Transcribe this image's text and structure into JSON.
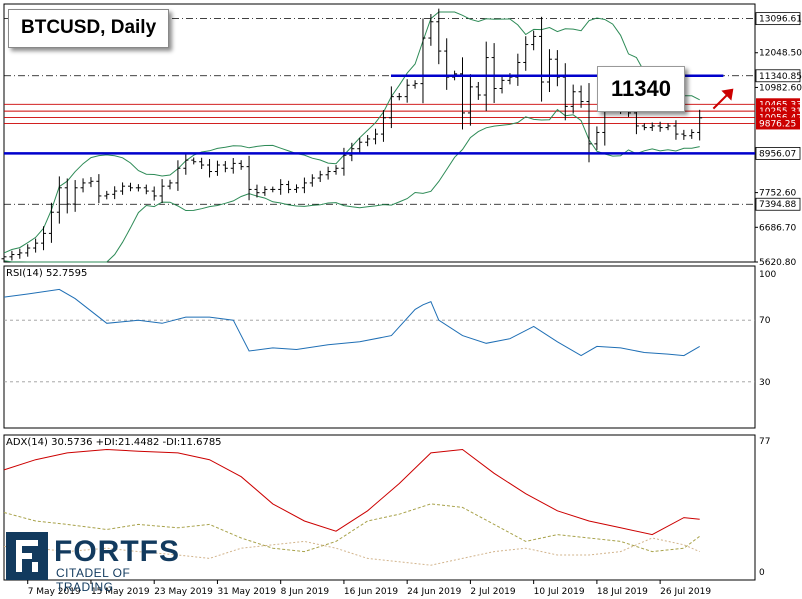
{
  "title": "BTCUSD, Daily",
  "callout": "11340",
  "price_axis": {
    "ticks": [
      "13096.61",
      "12048.50",
      "10982.60",
      "8956.07",
      "7752.60",
      "7394.88",
      "6686.70",
      "5620.80"
    ],
    "markers": [
      {
        "label": "13096.61",
        "value": 13096.61,
        "style": "dashdot",
        "color": "#000000"
      },
      {
        "label": "11340.85",
        "value": 11340.85,
        "style": "dashdot",
        "color": "#000000"
      },
      {
        "label": "8956.07",
        "value": 8956.07,
        "style": "dashdot",
        "color": "#000000"
      },
      {
        "label": "7394.88",
        "value": 7394.88,
        "style": "dashdot",
        "color": "#000000"
      },
      {
        "label": "10465.33",
        "value": 10465.33,
        "style": "solid",
        "color": "#cc0000"
      },
      {
        "label": "10255.31",
        "value": 10255.31,
        "style": "solid",
        "color": "#cc0000"
      },
      {
        "label": "10056.42",
        "value": 10056.42,
        "style": "solid",
        "color": "#cc0000"
      },
      {
        "label": "9876.25",
        "value": 9876.25,
        "style": "solid",
        "color": "#cc0000"
      }
    ],
    "levels": [
      {
        "value": 11340,
        "color": "#0000cc"
      },
      {
        "value": 8956,
        "color": "#0000cc"
      }
    ]
  },
  "x_axis": {
    "labels": [
      "7 May 2019",
      "15 May 2019",
      "23 May 2019",
      "31 May 2019",
      "8 Jun 2019",
      "16 Jun 2019",
      "24 Jun 2019",
      "2 Jul 2019",
      "10 Jul 2019",
      "18 Jul 2019",
      "26 Jul 2019"
    ]
  },
  "rsi_panel": {
    "label": "RSI(14) 52.7595",
    "ticks": [
      "100",
      "70",
      "30"
    ]
  },
  "adx_panel": {
    "label": "ADX(14) 30.5736 +DI:21.4482 -DI:11.6785",
    "ticks": [
      "77",
      "0"
    ]
  },
  "logo": {
    "name": "FORTFS",
    "tagline": "CITADEL OF TRADING"
  },
  "colors": {
    "line": "#1f6fb5",
    "band": "#2e8b57",
    "adx": "#cc0000",
    "plus_di": "#a8a24a",
    "minus_di": "#d2b48c",
    "level": "#0000cc",
    "marker": "#cc0000"
  },
  "chart_data": [
    {
      "type": "candlestick",
      "title": "BTCUSD, Daily",
      "ylim": [
        5620.8,
        13300
      ],
      "x": [
        "2019-05-04",
        "2019-05-05",
        "2019-05-06",
        "2019-05-07",
        "2019-05-08",
        "2019-05-09",
        "2019-05-10",
        "2019-05-11",
        "2019-05-12",
        "2019-05-13",
        "2019-05-14",
        "2019-05-15",
        "2019-05-16",
        "2019-05-17",
        "2019-05-18",
        "2019-05-19",
        "2019-05-20",
        "2019-05-21",
        "2019-05-22",
        "2019-05-23",
        "2019-05-24",
        "2019-05-25",
        "2019-05-26",
        "2019-05-27",
        "2019-05-28",
        "2019-05-29",
        "2019-05-30",
        "2019-05-31",
        "2019-06-01",
        "2019-06-02",
        "2019-06-03",
        "2019-06-04",
        "2019-06-05",
        "2019-06-06",
        "2019-06-07",
        "2019-06-08",
        "2019-06-09",
        "2019-06-10",
        "2019-06-11",
        "2019-06-12",
        "2019-06-13",
        "2019-06-14",
        "2019-06-15",
        "2019-06-16",
        "2019-06-17",
        "2019-06-18",
        "2019-06-19",
        "2019-06-20",
        "2019-06-21",
        "2019-06-22",
        "2019-06-23",
        "2019-06-24",
        "2019-06-25",
        "2019-06-26",
        "2019-06-27",
        "2019-06-28",
        "2019-06-29",
        "2019-06-30",
        "2019-07-01",
        "2019-07-02",
        "2019-07-03",
        "2019-07-04",
        "2019-07-05",
        "2019-07-06",
        "2019-07-07",
        "2019-07-08",
        "2019-07-09",
        "2019-07-10",
        "2019-07-11",
        "2019-07-12",
        "2019-07-13",
        "2019-07-14",
        "2019-07-15",
        "2019-07-16",
        "2019-07-17",
        "2019-07-18",
        "2019-07-19",
        "2019-07-20",
        "2019-07-21",
        "2019-07-22",
        "2019-07-23",
        "2019-07-24",
        "2019-07-25",
        "2019-07-26",
        "2019-07-27",
        "2019-07-28",
        "2019-07-29",
        "2019-07-30",
        "2019-07-31"
      ],
      "close": [
        5780,
        5850,
        5900,
        6050,
        6200,
        6500,
        7150,
        7900,
        7400,
        7900,
        8050,
        8100,
        7650,
        7700,
        7800,
        7950,
        7900,
        7900,
        7800,
        7650,
        7950,
        8050,
        8500,
        8750,
        8700,
        8600,
        8400,
        8600,
        8500,
        8650,
        8550,
        7850,
        7750,
        7850,
        7850,
        8000,
        7850,
        7900,
        8050,
        8200,
        8300,
        8400,
        8500,
        8900,
        9100,
        9300,
        9400,
        9550,
        10050,
        10700,
        10700,
        11050,
        11100,
        12500,
        13000,
        12100,
        11300,
        11400,
        10200,
        11000,
        10750,
        11900,
        10950,
        11200,
        11300,
        11750,
        12300,
        12550,
        11150,
        11850,
        11300,
        10400,
        10850,
        10550,
        9250,
        9600,
        10500,
        10500,
        10300,
        10200,
        9800,
        9750,
        9800,
        9750,
        9800,
        9550,
        9500,
        9600,
        10050
      ]
    },
    {
      "type": "line",
      "title": "RSI(14) 52.7595",
      "ylim": [
        0,
        100
      ],
      "x": [
        "2019-05-04",
        "2019-05-07",
        "2019-05-11",
        "2019-05-13",
        "2019-05-17",
        "2019-05-21",
        "2019-05-24",
        "2019-05-27",
        "2019-05-30",
        "2019-06-02",
        "2019-06-04",
        "2019-06-07",
        "2019-06-10",
        "2019-06-14",
        "2019-06-18",
        "2019-06-22",
        "2019-06-25",
        "2019-06-26",
        "2019-06-27",
        "2019-06-28",
        "2019-07-01",
        "2019-07-04",
        "2019-07-07",
        "2019-07-10",
        "2019-07-13",
        "2019-07-16",
        "2019-07-18",
        "2019-07-21",
        "2019-07-24",
        "2019-07-27",
        "2019-07-29",
        "2019-07-31"
      ],
      "values": [
        85,
        87,
        90,
        84,
        68,
        70,
        68,
        72,
        72,
        70,
        50,
        52,
        51,
        54,
        56,
        60,
        77,
        80,
        82,
        70,
        60,
        55,
        58,
        66,
        56,
        47,
        53,
        52,
        49,
        48,
        47,
        53
      ]
    },
    {
      "type": "line",
      "title": "ADX(14) 30.5736 +DI:21.4482 -DI:11.6785",
      "ylim": [
        0,
        77
      ],
      "x": [
        "2019-05-04",
        "2019-05-08",
        "2019-05-12",
        "2019-05-17",
        "2019-05-21",
        "2019-05-26",
        "2019-05-30",
        "2019-06-03",
        "2019-06-07",
        "2019-06-11",
        "2019-06-15",
        "2019-06-19",
        "2019-06-23",
        "2019-06-27",
        "2019-07-01",
        "2019-07-05",
        "2019-07-09",
        "2019-07-13",
        "2019-07-17",
        "2019-07-21",
        "2019-07-25",
        "2019-07-29",
        "2019-07-31"
      ],
      "series": [
        {
          "values": [
            60,
            66,
            70,
            72,
            71,
            70,
            66,
            56,
            40,
            30,
            24,
            36,
            52,
            70,
            72,
            58,
            46,
            36,
            30,
            26,
            22,
            32,
            31
          ]
        },
        {
          "values": [
            35,
            30,
            28,
            25,
            28,
            26,
            28,
            20,
            14,
            12,
            18,
            30,
            34,
            40,
            38,
            28,
            18,
            22,
            20,
            18,
            12,
            14,
            21
          ]
        },
        {
          "values": [
            15,
            14,
            12,
            14,
            12,
            10,
            8,
            14,
            16,
            18,
            14,
            8,
            6,
            4,
            8,
            12,
            14,
            10,
            10,
            12,
            20,
            16,
            12
          ]
        }
      ]
    }
  ]
}
